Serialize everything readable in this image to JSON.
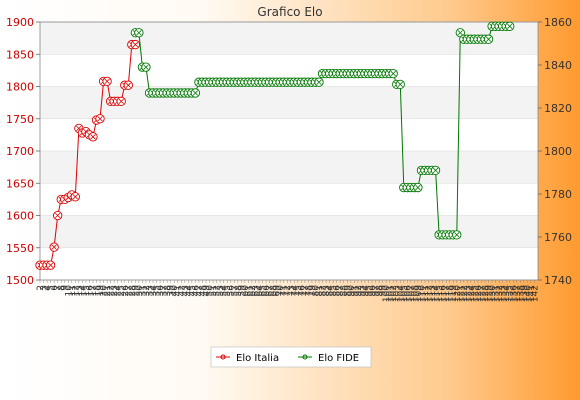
{
  "chart_data": {
    "type": "line",
    "title": "Grafico Elo",
    "x_tick_labels": [
      "2",
      "3",
      "4",
      "5",
      "6",
      "7",
      "8",
      "9",
      "10",
      "11",
      "12",
      "13",
      "14",
      "15",
      "16",
      "17",
      "18",
      "19",
      "20",
      "21",
      "22",
      "23",
      "24",
      "25",
      "26",
      "27",
      "28",
      "29",
      "30",
      "31",
      "32",
      "33",
      "34",
      "35",
      "36",
      "37",
      "38",
      "39",
      "40",
      "41",
      "42",
      "43",
      "44",
      "45",
      "46",
      "47",
      "48",
      "49",
      "50",
      "51",
      "52",
      "53",
      "54",
      "55",
      "56",
      "57",
      "58",
      "59",
      "60",
      "61",
      "62",
      "63",
      "64",
      "65",
      "66",
      "67",
      "68",
      "69",
      "70",
      "71",
      "72",
      "73",
      "74",
      "75",
      "76",
      "77",
      "78",
      "79",
      "80",
      "81",
      "82",
      "83",
      "84",
      "85",
      "86",
      "87",
      "88",
      "89",
      "90",
      "91",
      "92",
      "93",
      "94",
      "95",
      "96",
      "97",
      "98",
      "99",
      "100",
      "101",
      "102",
      "103",
      "104",
      "105",
      "106",
      "107",
      "108",
      "109",
      "110",
      "111",
      "112",
      "113",
      "114",
      "115",
      "116",
      "117",
      "118",
      "119",
      "120",
      "121",
      "122",
      "123",
      "124",
      "125",
      "126",
      "127",
      "128",
      "129",
      "130",
      "131",
      "132",
      "133",
      "134",
      "135",
      "136",
      "137",
      "138",
      "139",
      "140",
      "141",
      "142"
    ],
    "y_left": {
      "range": [
        1500,
        1900
      ],
      "ticks": [
        1500,
        1550,
        1600,
        1650,
        1700,
        1750,
        1800,
        1850,
        1900
      ],
      "color": "#cc0000"
    },
    "y_right": {
      "range": [
        1740,
        1860
      ],
      "ticks": [
        1740,
        1760,
        1780,
        1800,
        1820,
        1840,
        1860
      ],
      "color": "#333333"
    },
    "series": [
      {
        "name": "Elo Italia",
        "axis": "left",
        "color": "#dd0000",
        "points": [
          [
            0,
            1523
          ],
          [
            1,
            1523
          ],
          [
            2,
            1523
          ],
          [
            3,
            1523
          ],
          [
            4,
            1551
          ],
          [
            5,
            1600
          ],
          [
            6,
            1625
          ],
          [
            7,
            1625
          ],
          [
            8,
            1628
          ],
          [
            9,
            1632
          ],
          [
            10,
            1629
          ],
          [
            11,
            1735
          ],
          [
            12,
            1728
          ],
          [
            13,
            1730
          ],
          [
            14,
            1725
          ],
          [
            15,
            1722
          ],
          [
            16,
            1748
          ],
          [
            17,
            1750
          ],
          [
            18,
            1808
          ],
          [
            19,
            1808
          ],
          [
            20,
            1777
          ],
          [
            21,
            1777
          ],
          [
            22,
            1777
          ],
          [
            23,
            1777
          ],
          [
            24,
            1802
          ],
          [
            25,
            1802
          ],
          [
            26,
            1865
          ],
          [
            27,
            1865
          ]
        ]
      },
      {
        "name": "Elo FIDE",
        "axis": "right",
        "color": "#007700",
        "points": [
          [
            27,
            1855
          ],
          [
            28,
            1855
          ],
          [
            29,
            1839
          ],
          [
            30,
            1839
          ],
          [
            31,
            1827
          ],
          [
            32,
            1827
          ],
          [
            33,
            1827
          ],
          [
            34,
            1827
          ],
          [
            35,
            1827
          ],
          [
            36,
            1827
          ],
          [
            37,
            1827
          ],
          [
            38,
            1827
          ],
          [
            39,
            1827
          ],
          [
            40,
            1827
          ],
          [
            41,
            1827
          ],
          [
            42,
            1827
          ],
          [
            43,
            1827
          ],
          [
            44,
            1827
          ],
          [
            45,
            1832
          ],
          [
            46,
            1832
          ],
          [
            47,
            1832
          ],
          [
            48,
            1832
          ],
          [
            49,
            1832
          ],
          [
            50,
            1832
          ],
          [
            51,
            1832
          ],
          [
            52,
            1832
          ],
          [
            53,
            1832
          ],
          [
            54,
            1832
          ],
          [
            55,
            1832
          ],
          [
            56,
            1832
          ],
          [
            57,
            1832
          ],
          [
            58,
            1832
          ],
          [
            59,
            1832
          ],
          [
            60,
            1832
          ],
          [
            61,
            1832
          ],
          [
            62,
            1832
          ],
          [
            63,
            1832
          ],
          [
            64,
            1832
          ],
          [
            65,
            1832
          ],
          [
            66,
            1832
          ],
          [
            67,
            1832
          ],
          [
            68,
            1832
          ],
          [
            69,
            1832
          ],
          [
            70,
            1832
          ],
          [
            71,
            1832
          ],
          [
            72,
            1832
          ],
          [
            73,
            1832
          ],
          [
            74,
            1832
          ],
          [
            75,
            1832
          ],
          [
            76,
            1832
          ],
          [
            77,
            1832
          ],
          [
            78,
            1832
          ],
          [
            79,
            1832
          ],
          [
            80,
            1836
          ],
          [
            81,
            1836
          ],
          [
            82,
            1836
          ],
          [
            83,
            1836
          ],
          [
            84,
            1836
          ],
          [
            85,
            1836
          ],
          [
            86,
            1836
          ],
          [
            87,
            1836
          ],
          [
            88,
            1836
          ],
          [
            89,
            1836
          ],
          [
            90,
            1836
          ],
          [
            91,
            1836
          ],
          [
            92,
            1836
          ],
          [
            93,
            1836
          ],
          [
            94,
            1836
          ],
          [
            95,
            1836
          ],
          [
            96,
            1836
          ],
          [
            97,
            1836
          ],
          [
            98,
            1836
          ],
          [
            99,
            1836
          ],
          [
            100,
            1836
          ],
          [
            101,
            1831
          ],
          [
            102,
            1831
          ],
          [
            103,
            1783
          ],
          [
            104,
            1783
          ],
          [
            105,
            1783
          ],
          [
            106,
            1783
          ],
          [
            107,
            1783
          ],
          [
            108,
            1791
          ],
          [
            109,
            1791
          ],
          [
            110,
            1791
          ],
          [
            111,
            1791
          ],
          [
            112,
            1791
          ],
          [
            113,
            1761
          ],
          [
            114,
            1761
          ],
          [
            115,
            1761
          ],
          [
            116,
            1761
          ],
          [
            117,
            1761
          ],
          [
            118,
            1761
          ],
          [
            119,
            1855
          ],
          [
            120,
            1852
          ],
          [
            121,
            1852
          ],
          [
            122,
            1852
          ],
          [
            123,
            1852
          ],
          [
            124,
            1852
          ],
          [
            125,
            1852
          ],
          [
            126,
            1852
          ],
          [
            127,
            1852
          ],
          [
            128,
            1858
          ],
          [
            129,
            1858
          ],
          [
            130,
            1858
          ],
          [
            131,
            1858
          ],
          [
            132,
            1858
          ],
          [
            133,
            1858
          ]
        ]
      }
    ],
    "bands": "alternating gray/white between y-ticks",
    "grid": true,
    "legend": "bottom-center"
  }
}
